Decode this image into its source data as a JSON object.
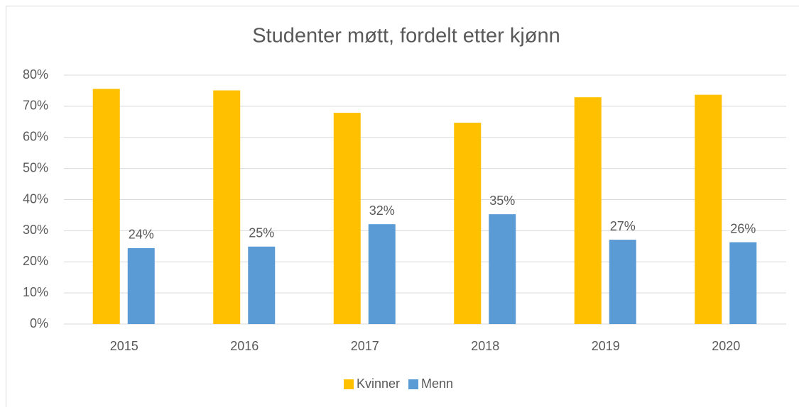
{
  "chart_data": {
    "type": "bar",
    "title": "Studenter møtt, fordelt etter kjønn",
    "categories": [
      "2015",
      "2016",
      "2017",
      "2018",
      "2019",
      "2020"
    ],
    "series": [
      {
        "name": "Kvinner",
        "color": "#ffc000",
        "values": [
          75.6,
          75.1,
          67.9,
          64.7,
          72.9,
          73.7
        ]
      },
      {
        "name": "Menn",
        "color": "#5b9bd5",
        "values": [
          24.4,
          24.9,
          32.1,
          35.3,
          27.1,
          26.3
        ],
        "value_labels": [
          "24%",
          "25%",
          "32%",
          "35%",
          "27%",
          "26%"
        ]
      }
    ],
    "ylim": [
      0,
      80
    ],
    "yticks": [
      {
        "value": 0,
        "label": "0%"
      },
      {
        "value": 10,
        "label": "10%"
      },
      {
        "value": 20,
        "label": "20%"
      },
      {
        "value": 30,
        "label": "30%"
      },
      {
        "value": 40,
        "label": "40%"
      },
      {
        "value": 50,
        "label": "50%"
      },
      {
        "value": 60,
        "label": "60%"
      },
      {
        "value": 70,
        "label": "70%"
      },
      {
        "value": 80,
        "label": "80%"
      }
    ],
    "grid": true,
    "legend": "bottom"
  }
}
